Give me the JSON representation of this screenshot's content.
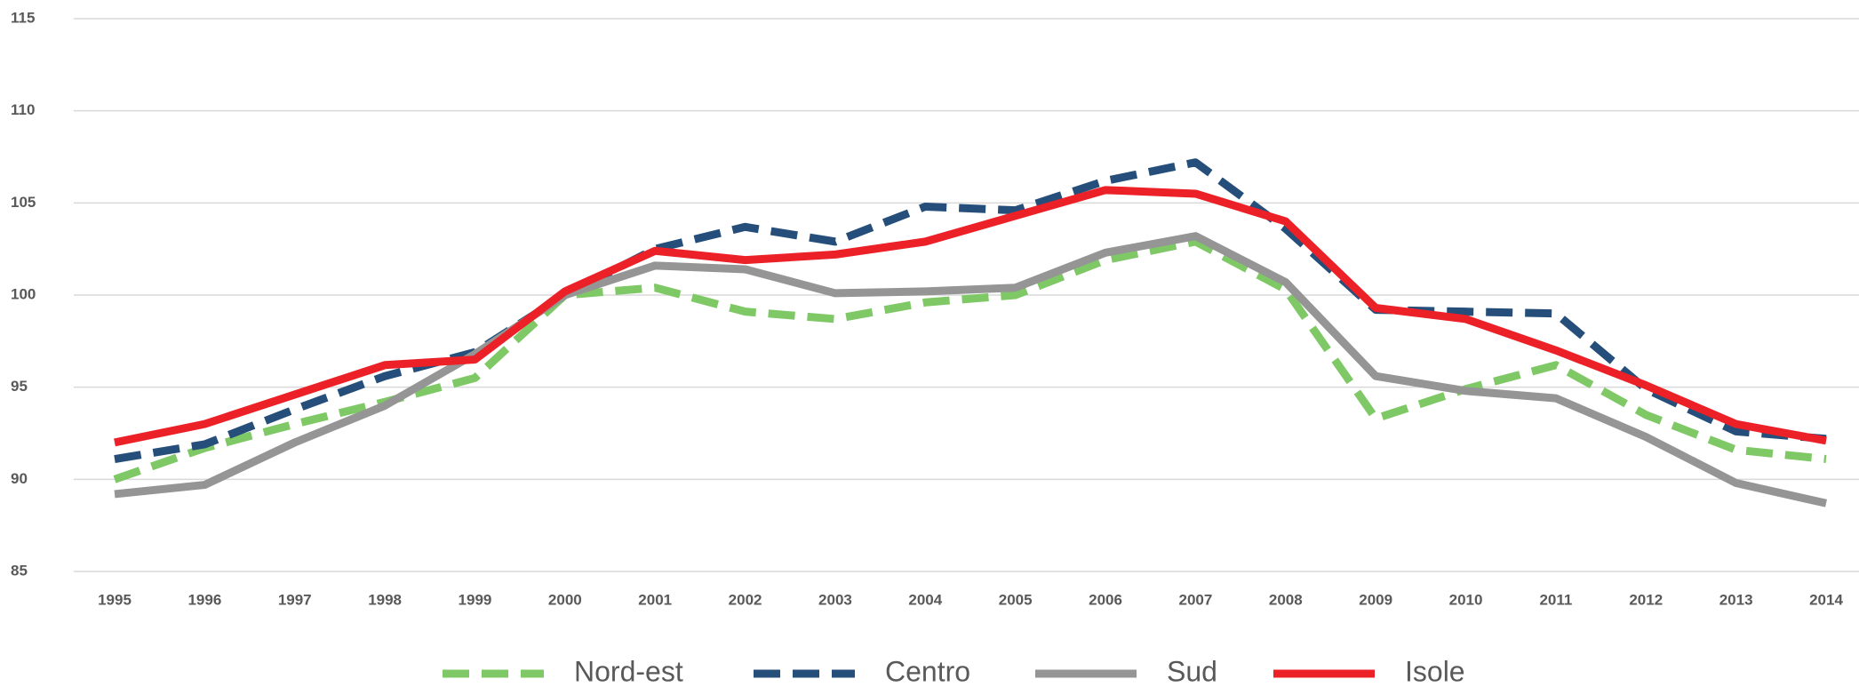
{
  "chart_data": {
    "type": "line",
    "categories": [
      "1995",
      "1996",
      "1997",
      "1998",
      "1999",
      "2000",
      "2001",
      "2002",
      "2003",
      "2004",
      "2005",
      "2006",
      "2007",
      "2008",
      "2009",
      "2010",
      "2011",
      "2012",
      "2013",
      "2014"
    ],
    "series": [
      {
        "name": "Nord-est",
        "color": "#7fc866",
        "dash": "dashed",
        "values": [
          90.0,
          91.7,
          93.0,
          94.2,
          95.5,
          100.0,
          100.4,
          99.1,
          98.7,
          99.6,
          100.0,
          101.9,
          102.9,
          100.3,
          93.3,
          94.9,
          96.2,
          93.5,
          91.6,
          91.1
        ]
      },
      {
        "name": "Centro",
        "color": "#254f7a",
        "dash": "dashed",
        "values": [
          91.1,
          91.9,
          93.8,
          95.6,
          96.9,
          100.0,
          102.5,
          103.7,
          102.9,
          104.8,
          104.6,
          106.2,
          107.2,
          103.6,
          99.2,
          99.1,
          99.0,
          94.9,
          92.6,
          92.2
        ]
      },
      {
        "name": "Sud",
        "color": "#959595",
        "dash": "solid",
        "values": [
          89.2,
          89.7,
          92.0,
          94.0,
          96.8,
          100.0,
          101.6,
          101.4,
          100.1,
          100.2,
          100.4,
          102.3,
          103.2,
          100.7,
          95.6,
          94.8,
          94.4,
          92.3,
          89.8,
          88.7
        ]
      },
      {
        "name": "Isole",
        "color": "#ec2027",
        "dash": "solid",
        "values": [
          92.0,
          93.0,
          94.6,
          96.2,
          96.5,
          100.2,
          102.4,
          101.9,
          102.2,
          102.9,
          104.3,
          105.7,
          105.5,
          104.0,
          99.3,
          98.7,
          97.0,
          95.1,
          93.0,
          92.1
        ]
      }
    ],
    "ylim": [
      85,
      115
    ],
    "yticks": [
      85,
      90,
      95,
      100,
      105,
      110,
      115
    ],
    "grid": true,
    "legend": "bottom"
  }
}
